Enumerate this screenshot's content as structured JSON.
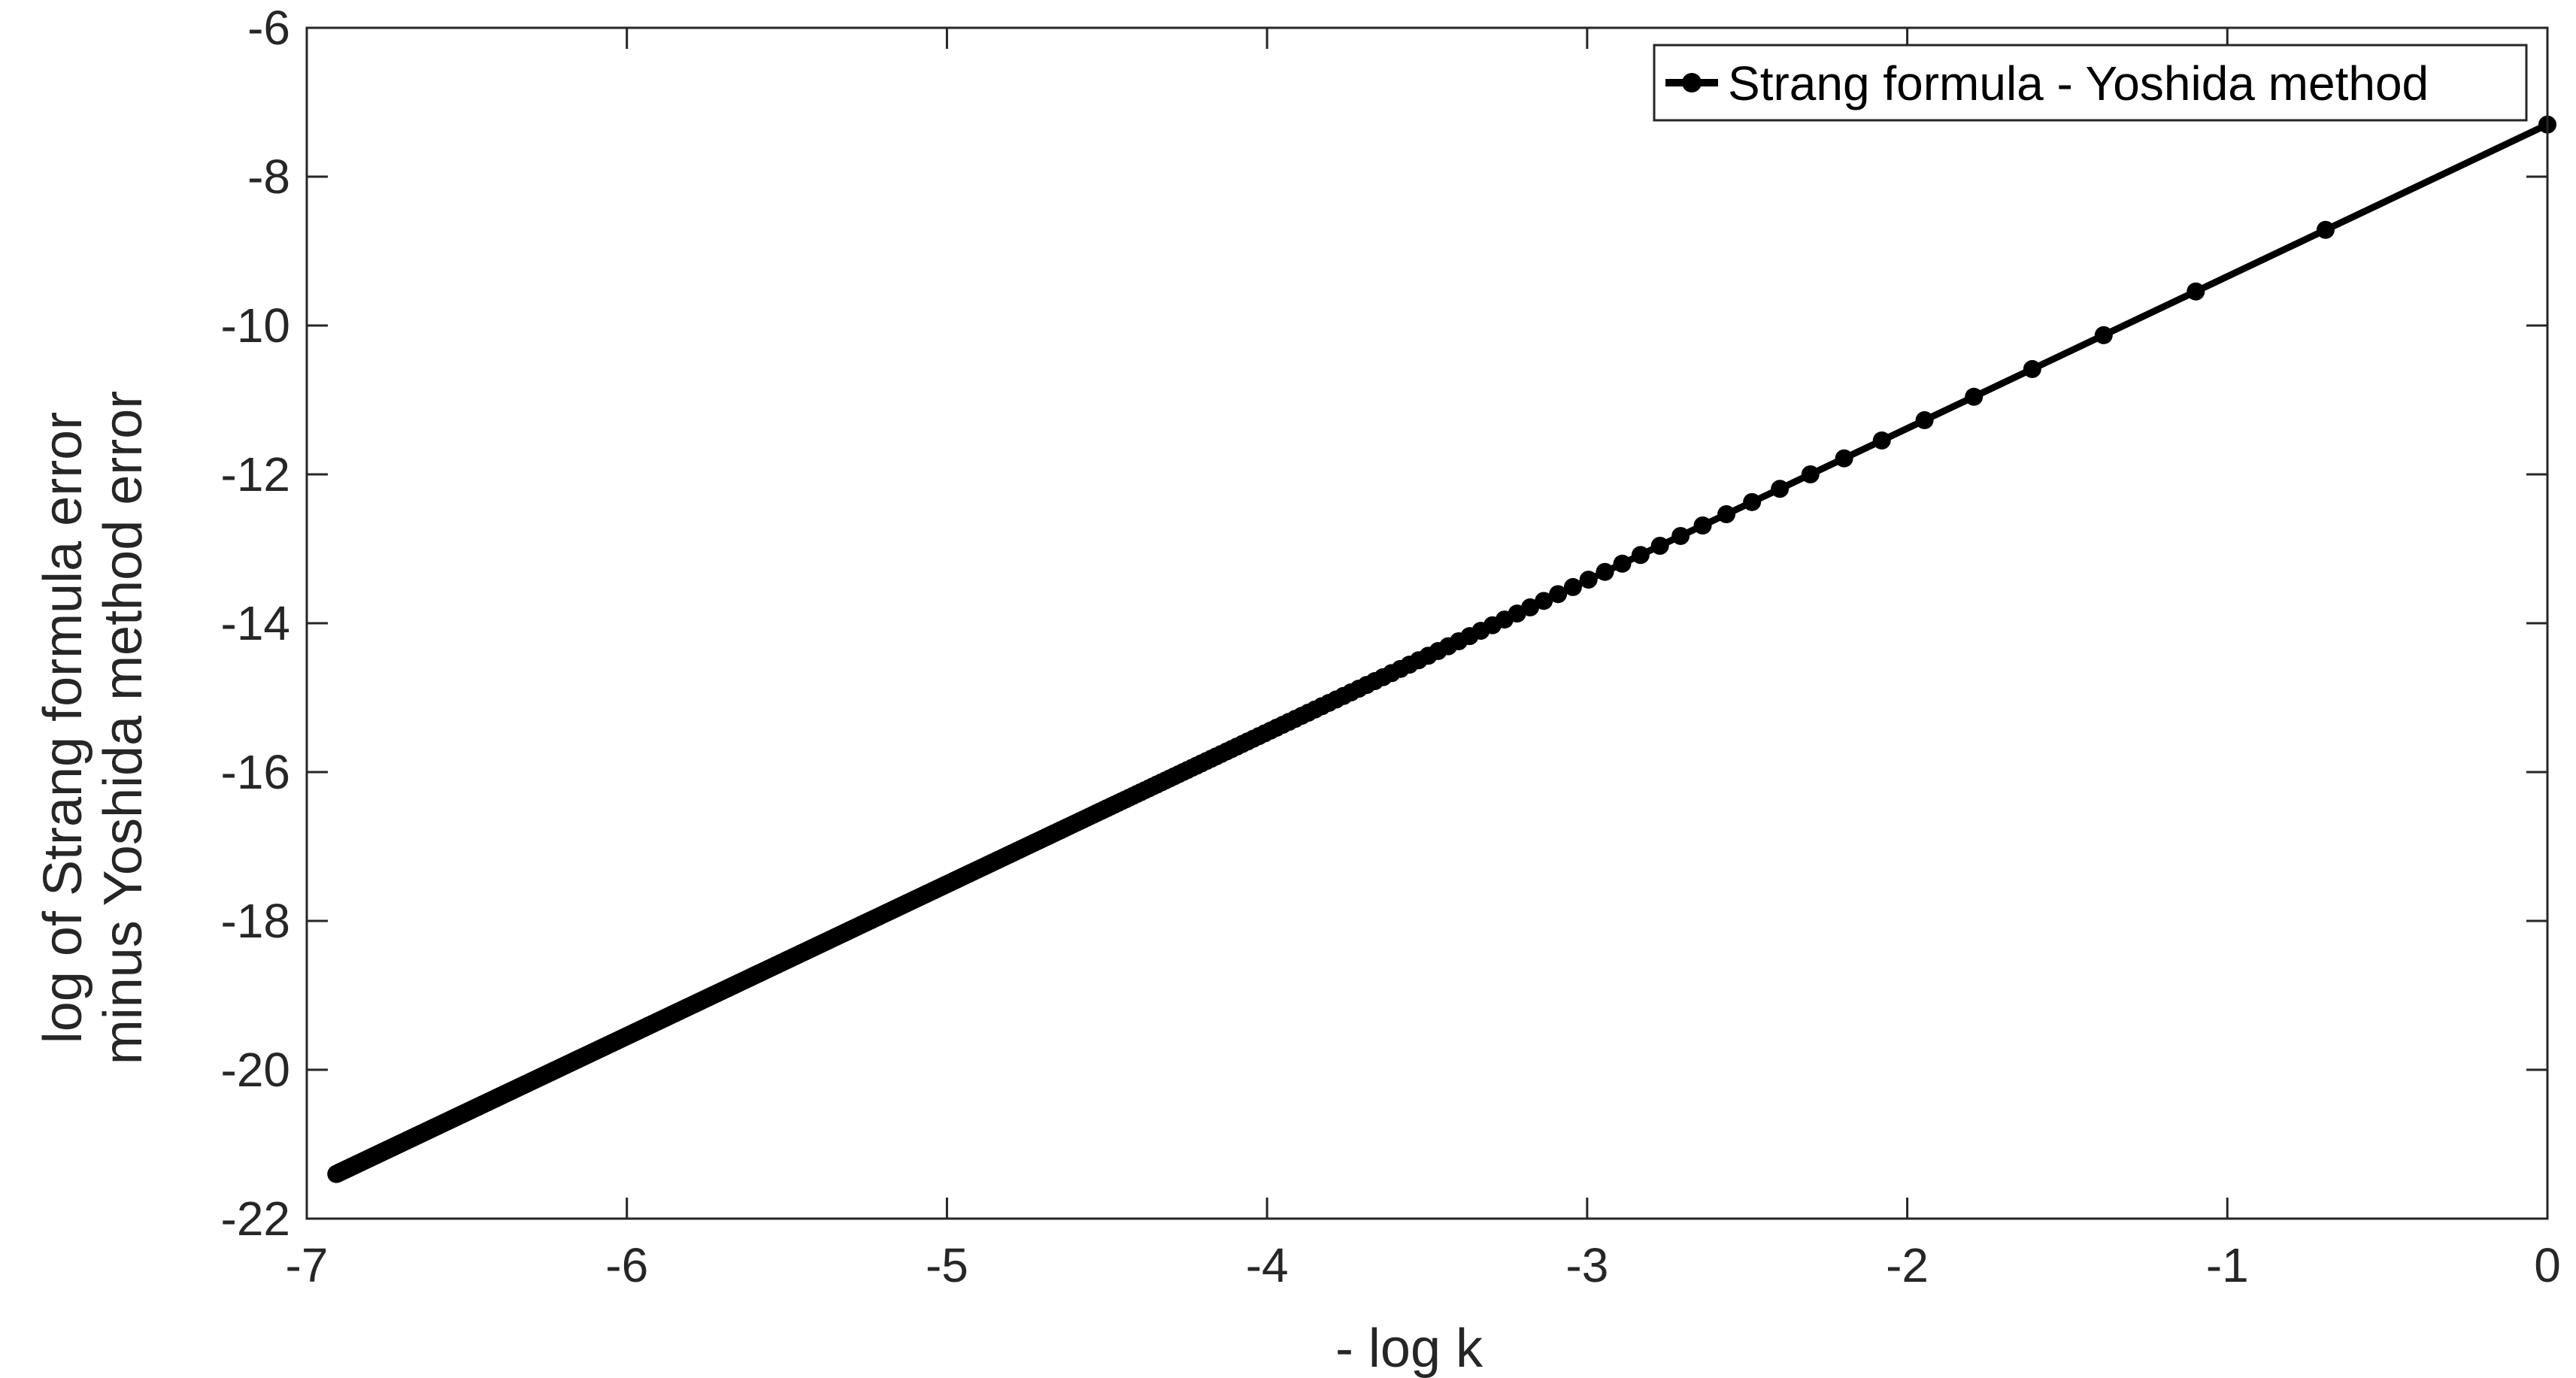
{
  "chart_data": {
    "type": "line",
    "xlabel": "- log k",
    "ylabel_lines": [
      "log of Strang formula error",
      "minus Yoshida method error"
    ],
    "xlim": [
      -7,
      0
    ],
    "ylim": [
      -22,
      -6
    ],
    "x_ticks": [
      -7,
      -6,
      -5,
      -4,
      -3,
      -2,
      -1,
      0
    ],
    "y_ticks": [
      -6,
      -8,
      -10,
      -12,
      -14,
      -16,
      -18,
      -20,
      -22
    ],
    "grid": false,
    "box": true,
    "legend_position": "top-right",
    "series": [
      {
        "name": "Strang formula - Yoshida method",
        "color": "#000000",
        "marker": "circle",
        "line_style": "solid",
        "samples": "k = 1, 1/2, 1/3, ..., 1/1000 (x = log(1/n), n = 1..1000)",
        "x_first": 0,
        "y_first": -7.3,
        "x_last": -6.9078,
        "y_last": -21.4,
        "slope": 2.0412
      }
    ]
  }
}
